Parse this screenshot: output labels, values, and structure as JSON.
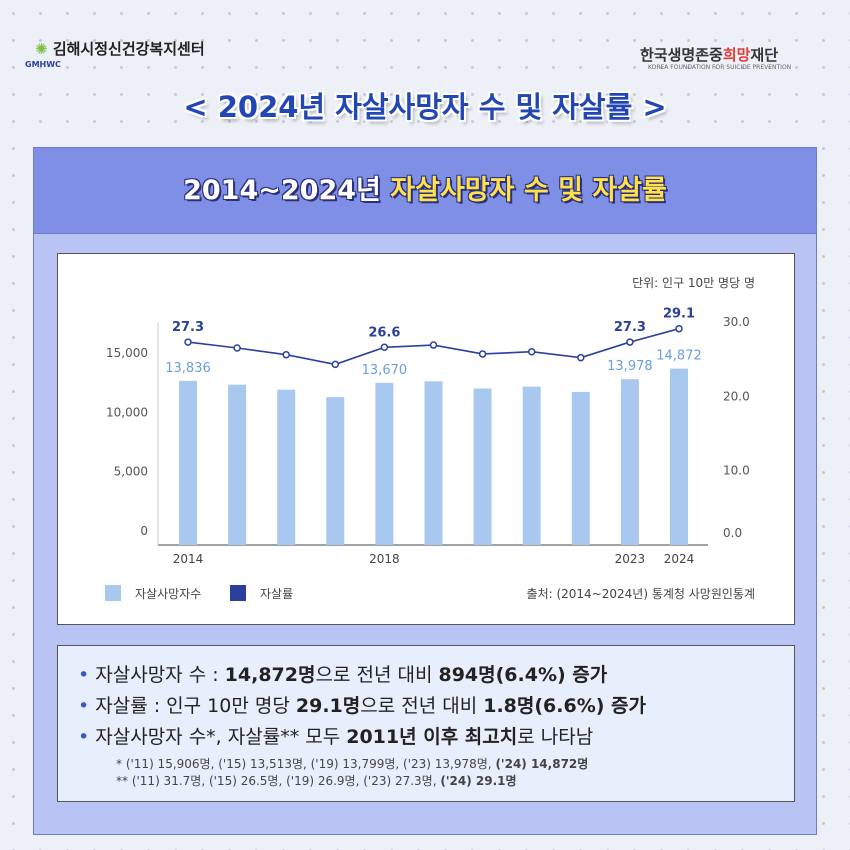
{
  "header": {
    "org1": "김해시정신건강복지센터",
    "org1_abbr": "GMHWC",
    "org2": [
      "한국생명존중",
      "희망",
      "재단"
    ],
    "org2_en": "KOREA FOUNDATION FOR SUICIDE PREVENTION",
    "title": "< 2024년 자살사망자 수 및 자살률 >"
  },
  "panel": {
    "title": [
      "2014~2024년 ",
      "자살사망자 수 및 자살률"
    ]
  },
  "chart_data": {
    "type": "bar_line",
    "unit": "단위: 인구 10만 명당 명",
    "source": "출처: (2014~2024년) 통계청 사망원인통계",
    "categories": [
      "2014",
      null,
      null,
      null,
      "2018",
      null,
      null,
      null,
      null,
      "2023",
      "2024"
    ],
    "series": [
      {
        "name": "자살사망자수",
        "type": "bar",
        "color": "#a9c8ef",
        "label_color": "#6a9ee0",
        "values": [
          13836,
          13513,
          13092,
          12463,
          13670,
          13799,
          13195,
          13352,
          12906,
          13978,
          14872
        ],
        "value_labels": [
          "13,836",
          null,
          null,
          null,
          "13,670",
          null,
          null,
          null,
          null,
          "13,978",
          "14,872"
        ]
      },
      {
        "name": "자살률",
        "type": "line",
        "axis": "y2",
        "color": "#2a3f9e",
        "values": [
          27.3,
          26.5,
          25.6,
          24.3,
          26.6,
          26.9,
          25.7,
          26.0,
          25.2,
          27.3,
          29.1
        ],
        "value_labels": [
          "27.3",
          null,
          null,
          null,
          "26.6",
          null,
          null,
          null,
          null,
          "27.3",
          "29.1"
        ]
      }
    ],
    "ylim": [
      0,
      18800
    ],
    "yticks": [
      0,
      {
        "value": 5000,
        "label": "5,000"
      },
      {
        "value": 10000,
        "label": "10,000"
      },
      {
        "value": 15000,
        "label": "15,000"
      }
    ],
    "y2lim": [
      0,
      30
    ],
    "y2ticks": [
      {
        "value": 0,
        "label": "0.0"
      },
      {
        "value": 10,
        "label": "10.0"
      },
      {
        "value": 20,
        "label": "20.0"
      },
      {
        "value": 30,
        "label": "30.0"
      }
    ]
  },
  "bullets": [
    [
      "자살사망자 수 : ",
      "14,872명",
      "으로 전년 대비 ",
      "894명(6.4%) 증가"
    ],
    [
      "자살률 : 인구 10만 명당 ",
      "29.1명",
      "으로 전년 대비 ",
      "1.8명(6.6%) 증가"
    ],
    [
      "자살사망자 수*, 자살률** 모두 ",
      "2011년 이후 최고치",
      "로 나타남"
    ]
  ],
  "footnotes": [
    [
      "* ('11) 15,906명, ('15) 13,513명, ('19) 13,799명, ('23) 13,978명, ",
      "('24) 14,872명"
    ],
    [
      "** ('11) 31.7명, ('15) 26.5명, ('19) 26.9명, ('23) 27.3명, ",
      "('24) 29.1명"
    ]
  ]
}
